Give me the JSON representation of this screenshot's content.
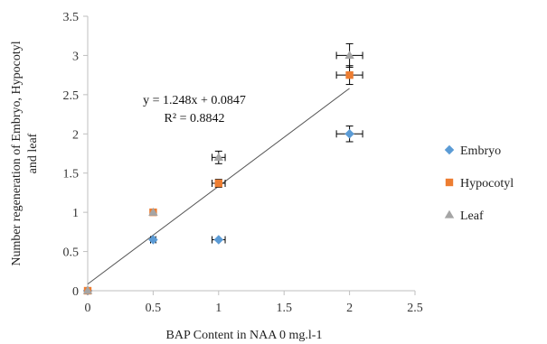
{
  "chart_data": {
    "type": "scatter",
    "title": "",
    "xlabel": "BAP Content in NAA  0 mg.l-1",
    "ylabel": "Number regeneration of Embryo, Hypocotyl and leaf",
    "xlim": [
      0,
      2.5
    ],
    "ylim": [
      0,
      3.5
    ],
    "x_ticks": [
      "0",
      "0.5",
      "1",
      "1.5",
      "2",
      "2.5"
    ],
    "y_ticks": [
      "0",
      "0.5",
      "1",
      "1.5",
      "2",
      "2.5",
      "3",
      "3.5"
    ],
    "legend_position": "right",
    "series": [
      {
        "name": "Embryo",
        "color": "#5B9BD5",
        "marker": "diamond",
        "points": [
          {
            "x": 0,
            "y": 0,
            "xerr": 0.02,
            "yerr": 0
          },
          {
            "x": 0.5,
            "y": 0.65,
            "xerr": 0.02,
            "yerr": 0
          },
          {
            "x": 1,
            "y": 0.65,
            "xerr": 0.05,
            "yerr": 0
          },
          {
            "x": 2,
            "y": 2.0,
            "xerr": 0.1,
            "yerr": 0.1
          }
        ]
      },
      {
        "name": "Hypocotyl",
        "color": "#ED7D31",
        "marker": "square",
        "points": [
          {
            "x": 0,
            "y": 0,
            "xerr": 0,
            "yerr": 0
          },
          {
            "x": 0.5,
            "y": 1.0,
            "xerr": 0,
            "yerr": 0
          },
          {
            "x": 1,
            "y": 1.37,
            "xerr": 0.05,
            "yerr": 0.05
          },
          {
            "x": 2,
            "y": 2.75,
            "xerr": 0.1,
            "yerr": 0.12
          }
        ]
      },
      {
        "name": "Leaf",
        "color": "#A5A5A5",
        "marker": "triangle",
        "points": [
          {
            "x": 0,
            "y": 0,
            "xerr": 0,
            "yerr": 0
          },
          {
            "x": 0.5,
            "y": 1.0,
            "xerr": 0,
            "yerr": 0
          },
          {
            "x": 1,
            "y": 1.7,
            "xerr": 0.05,
            "yerr": 0.08
          },
          {
            "x": 2,
            "y": 3.0,
            "xerr": 0.1,
            "yerr": 0.15
          }
        ]
      }
    ],
    "trendline": {
      "slope": 1.248,
      "intercept": 0.0847,
      "x_range": [
        0,
        2
      ],
      "color": "#555555",
      "equation": "y = 1.248x + 0.0847",
      "r_squared": "R² = 0.8842"
    }
  }
}
